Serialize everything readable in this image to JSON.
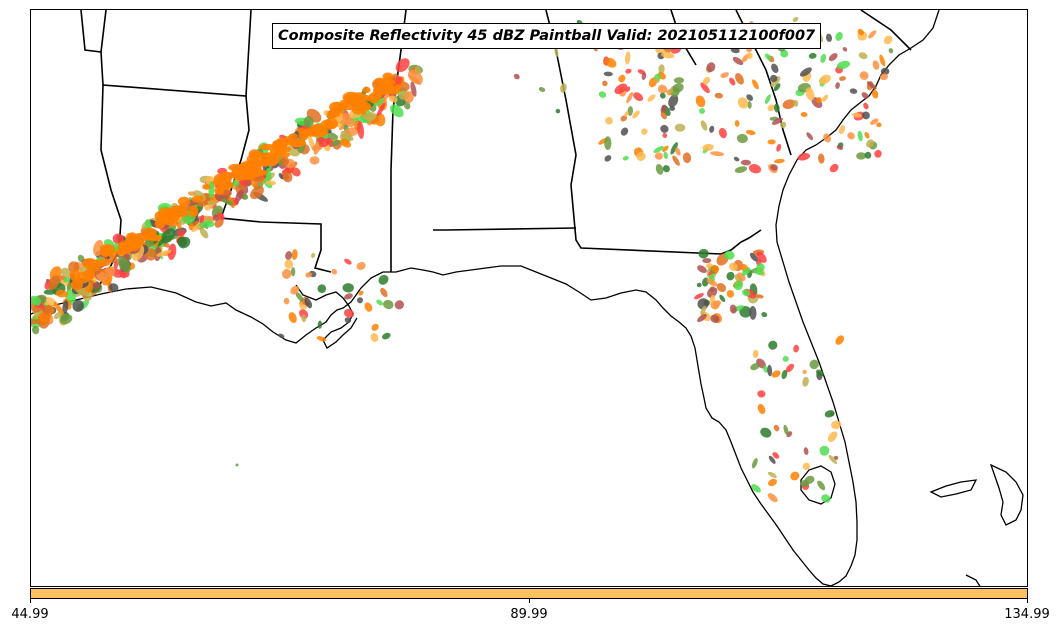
{
  "title": "Composite Reflectivity 45 dBZ Paintball Valid: 202105112100f007",
  "colorbar": {
    "color": "#FFC060",
    "ticks": [
      "44.99",
      "89.99",
      "134.99"
    ]
  },
  "map": {
    "region": "Southeastern United States and Gulf of Mexico",
    "ensemble_member_colors": [
      "#FF8000",
      "#FF4040",
      "#FFB84D",
      "#B05050",
      "#2E7D2E",
      "#4DDD4D",
      "#BDB050",
      "#505050",
      "#E07020",
      "#6A9A40",
      "#FF9040"
    ]
  }
}
